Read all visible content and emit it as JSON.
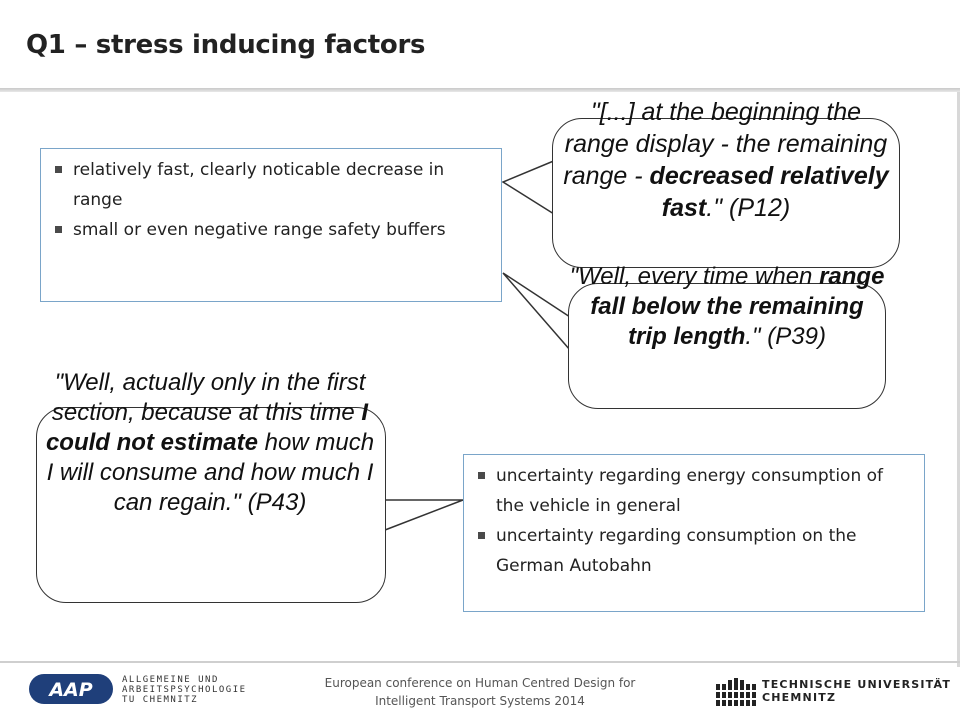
{
  "slide": {
    "title": "Q1 – stress inducing factors"
  },
  "box_top": {
    "items": [
      "relatively fast, clearly noticable decrease in range",
      "small or even negative range safety buffers"
    ]
  },
  "box_bottom": {
    "items": [
      "uncertainty regarding energy consumption of the vehicle in general",
      "uncertainty regarding consumption on the German Autobahn"
    ]
  },
  "quote_1": {
    "text_a": "\"[...] at the beginning the range display - the remaining range - ",
    "bold": "decreased relatively fast",
    "text_b": ".\"",
    "source": " (P12)"
  },
  "quote_2": {
    "text_a": "\"Well, every time when ",
    "bold": "range fall below the remaining trip length",
    "text_b": ".\"",
    "source": " (P39)"
  },
  "quote_3": {
    "text_a": "\"Well, actually only in the first section, because at this time ",
    "bold": "I could not estimate",
    "text_b": " how much I will consume and how much I can regain.\"",
    "source": " (P43)"
  },
  "footer": {
    "line1": "European conference on Human Centred Design for",
    "line2": "Intelligent Transport Systems 2014",
    "aap_logo_text": "AAP",
    "aap_line1": "ALLGEMEINE UND",
    "aap_line2": "ARBEITSPSYCHOLOGIE",
    "aap_line3": "TU CHEMNITZ",
    "tu_line1": "TECHNISCHE UNIVERSITÄT",
    "tu_line2": "CHEMNITZ"
  },
  "colors": {
    "box_border": "#7aa5c9",
    "aap_blue": "#1f3f7a"
  }
}
